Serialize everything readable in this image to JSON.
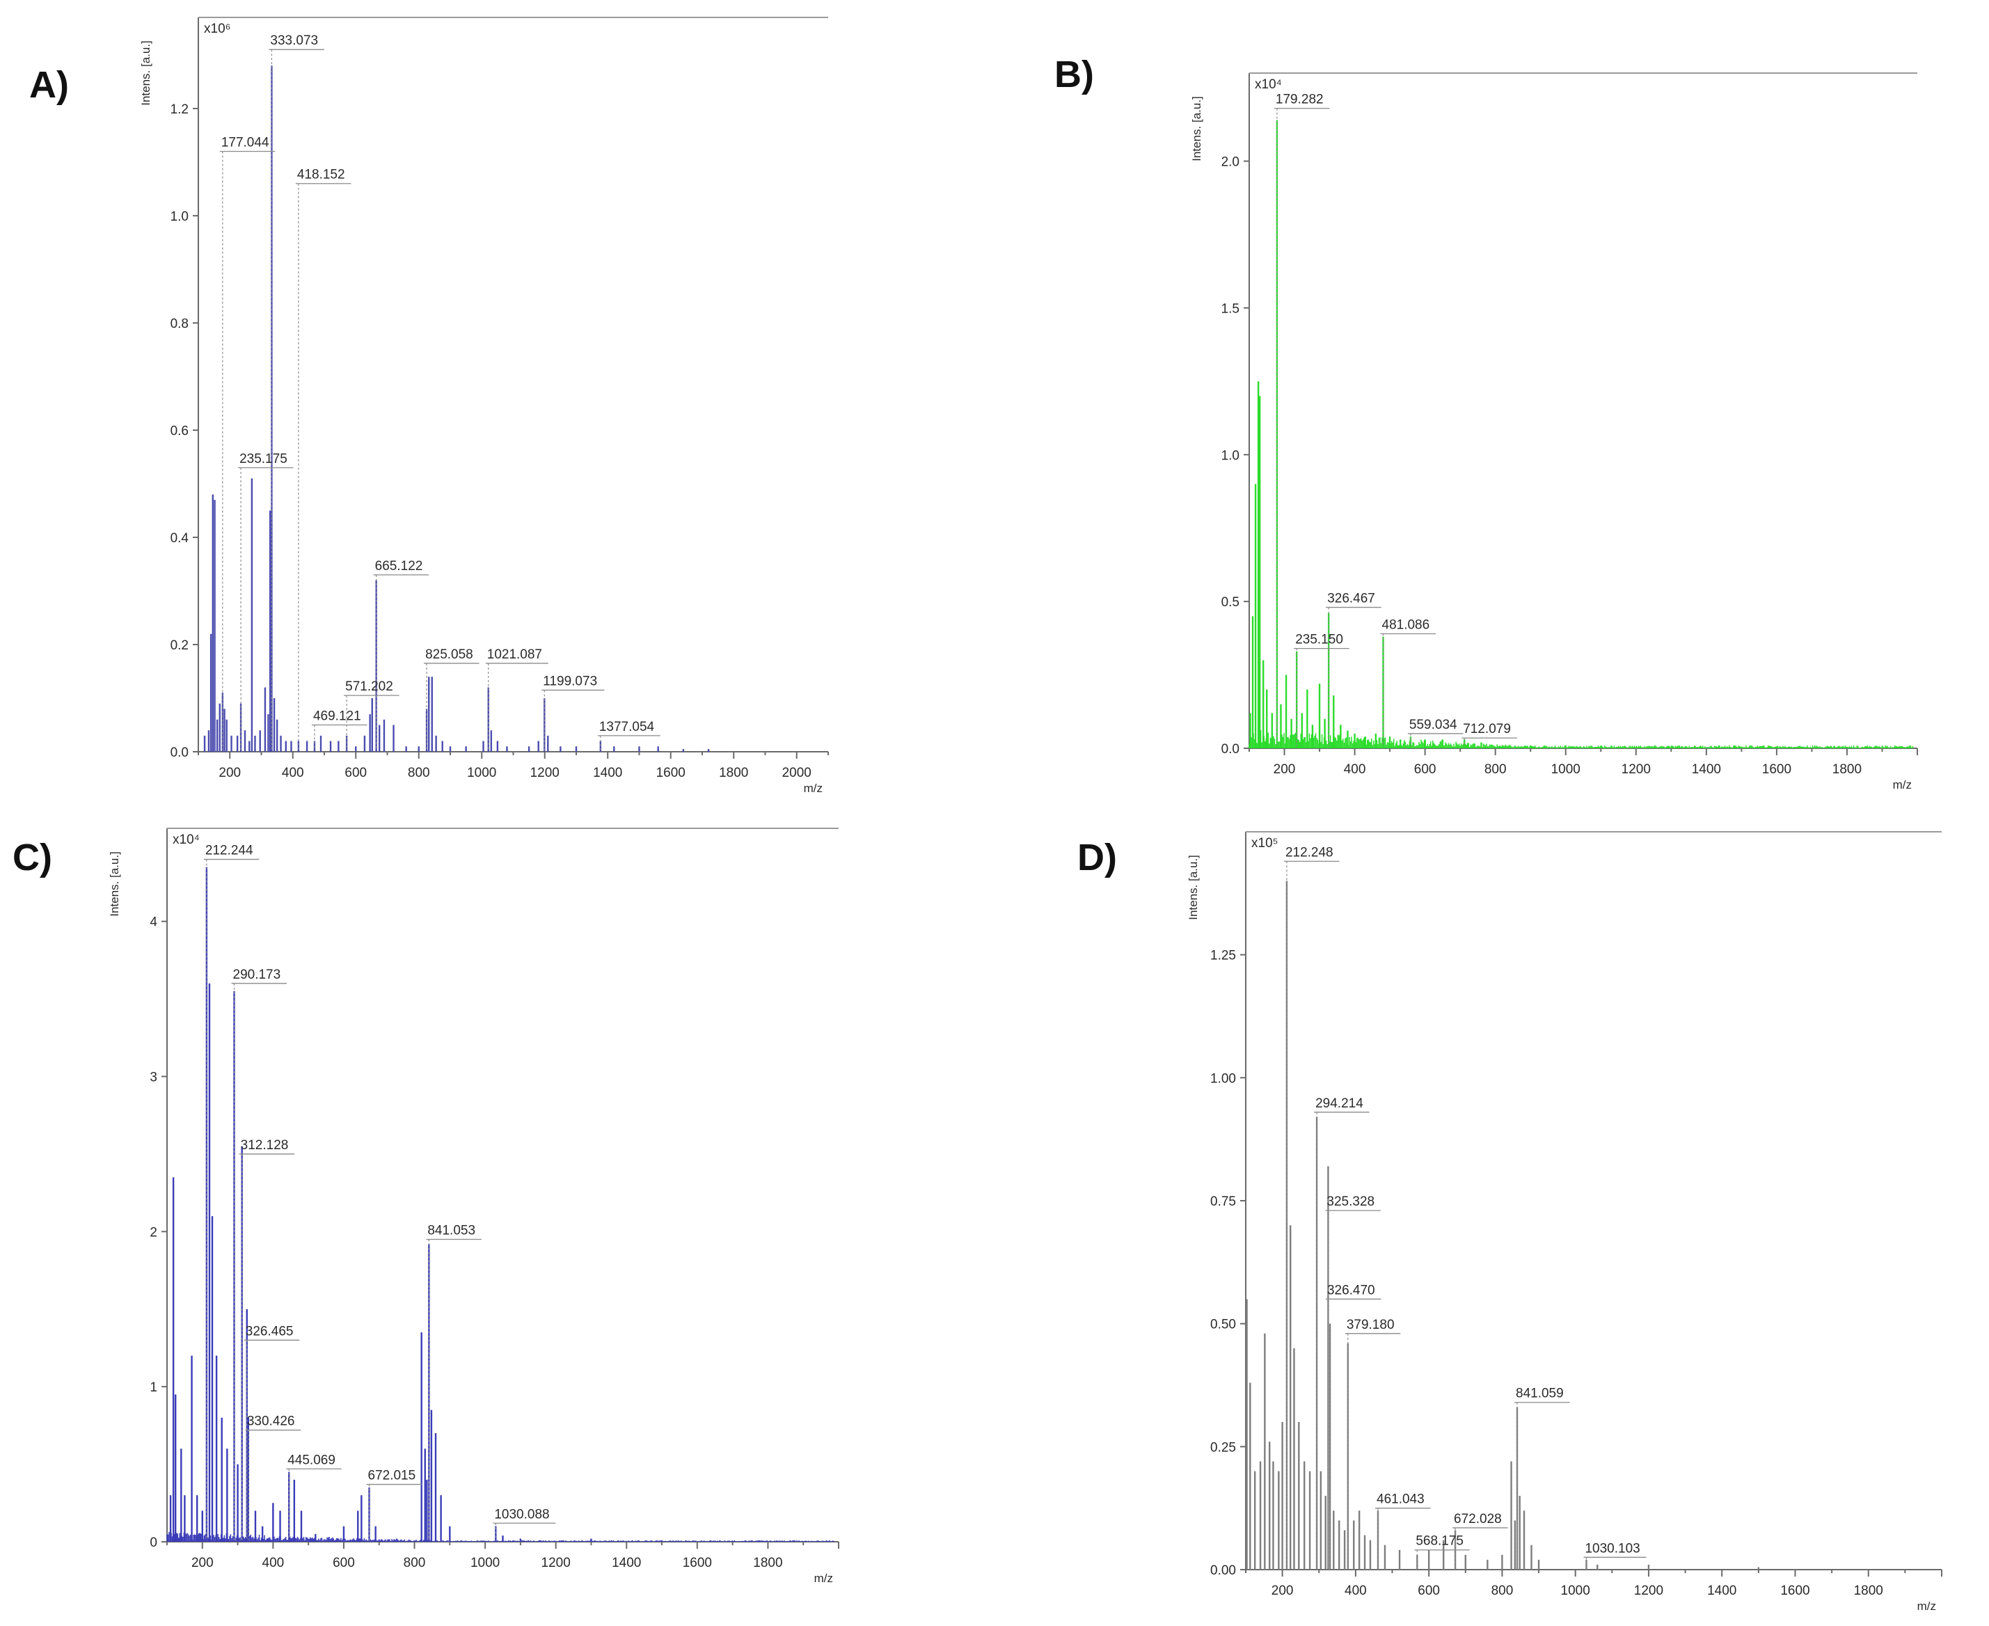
{
  "colors": {
    "A": "#4a4cae",
    "B": "#2bdc2b",
    "C": "#3a3cb8",
    "D": "#7d7d7d",
    "axis": "#6a6a6a",
    "text": "#2a2a2a"
  },
  "chart_data": [
    {
      "panel": "A)",
      "type": "bar",
      "color": "#4a4cae",
      "ylabel": "Intens. [a.u.]",
      "scale": "x10⁶",
      "xlabel": "m/z",
      "xlim": [
        100,
        2100
      ],
      "ylim": [
        0,
        1.37
      ],
      "xticks": [
        200,
        400,
        600,
        800,
        1000,
        1200,
        1400,
        1600,
        1800,
        2000
      ],
      "yticks": [
        0.0,
        0.2,
        0.4,
        0.6,
        0.8,
        1.0,
        1.2
      ],
      "ytick_labels": [
        "0.0",
        "0.2",
        "0.4",
        "0.6",
        "0.8",
        "1.0",
        "1.2"
      ],
      "peaks": [
        [
          120,
          0.03
        ],
        [
          133,
          0.04
        ],
        [
          140,
          0.22
        ],
        [
          146,
          0.48
        ],
        [
          152,
          0.47
        ],
        [
          160,
          0.06
        ],
        [
          168,
          0.09
        ],
        [
          177,
          0.11
        ],
        [
          183,
          0.08
        ],
        [
          190,
          0.06
        ],
        [
          205,
          0.03
        ],
        [
          224,
          0.03
        ],
        [
          235,
          0.09
        ],
        [
          248,
          0.04
        ],
        [
          262,
          0.02
        ],
        [
          270,
          0.51
        ],
        [
          280,
          0.03
        ],
        [
          296,
          0.04
        ],
        [
          312,
          0.12
        ],
        [
          322,
          0.07
        ],
        [
          328,
          0.45
        ],
        [
          333,
          1.28
        ],
        [
          341,
          0.1
        ],
        [
          350,
          0.06
        ],
        [
          362,
          0.03
        ],
        [
          378,
          0.02
        ],
        [
          395,
          0.02
        ],
        [
          418,
          0.02
        ],
        [
          445,
          0.02
        ],
        [
          469,
          0.02
        ],
        [
          489,
          0.03
        ],
        [
          520,
          0.02
        ],
        [
          545,
          0.02
        ],
        [
          571,
          0.03
        ],
        [
          600,
          0.01
        ],
        [
          628,
          0.03
        ],
        [
          645,
          0.07
        ],
        [
          652,
          0.1
        ],
        [
          665,
          0.32
        ],
        [
          675,
          0.05
        ],
        [
          690,
          0.06
        ],
        [
          720,
          0.05
        ],
        [
          760,
          0.01
        ],
        [
          800,
          0.01
        ],
        [
          825,
          0.08
        ],
        [
          832,
          0.14
        ],
        [
          842,
          0.14
        ],
        [
          855,
          0.03
        ],
        [
          875,
          0.02
        ],
        [
          900,
          0.01
        ],
        [
          950,
          0.01
        ],
        [
          1005,
          0.02
        ],
        [
          1021,
          0.12
        ],
        [
          1030,
          0.04
        ],
        [
          1050,
          0.02
        ],
        [
          1080,
          0.01
        ],
        [
          1150,
          0.01
        ],
        [
          1180,
          0.02
        ],
        [
          1199,
          0.1
        ],
        [
          1210,
          0.03
        ],
        [
          1250,
          0.01
        ],
        [
          1300,
          0.01
        ],
        [
          1377,
          0.02
        ],
        [
          1420,
          0.01
        ],
        [
          1500,
          0.01
        ],
        [
          1560,
          0.01
        ],
        [
          1640,
          0.005
        ],
        [
          1720,
          0.005
        ]
      ],
      "labels": [
        {
          "text": "333.073",
          "mz": 333,
          "val": 1.31
        },
        {
          "text": "177.044",
          "mz": 177,
          "val": 1.12
        },
        {
          "text": "418.152",
          "mz": 418,
          "val": 1.06
        },
        {
          "text": "235.175",
          "mz": 235,
          "val": 0.53
        },
        {
          "text": "665.122",
          "mz": 665,
          "val": 0.33
        },
        {
          "text": "825.058",
          "mz": 825,
          "val": 0.165
        },
        {
          "text": "1021.087",
          "mz": 1021,
          "val": 0.165
        },
        {
          "text": "571.202",
          "mz": 571,
          "val": 0.105
        },
        {
          "text": "1199.073",
          "mz": 1199,
          "val": 0.115
        },
        {
          "text": "469.121",
          "mz": 469,
          "val": 0.05
        },
        {
          "text": "1377.054",
          "mz": 1377,
          "val": 0.03
        }
      ]
    },
    {
      "panel": "B)",
      "type": "bar",
      "color": "#2bdc2b",
      "ylabel": "Intens. [a.u.]",
      "scale": "x10⁴",
      "xlabel": "m/z",
      "xlim": [
        100,
        2000
      ],
      "ylim": [
        0,
        2.3
      ],
      "xticks": [
        200,
        400,
        600,
        800,
        1000,
        1200,
        1400,
        1600,
        1800
      ],
      "yticks": [
        0.0,
        0.5,
        1.0,
        1.5,
        2.0
      ],
      "ytick_labels": [
        "0.0",
        "0.5",
        "1.0",
        "1.5",
        "2.0"
      ],
      "peaks": [
        [
          103,
          0.12
        ],
        [
          110,
          0.45
        ],
        [
          118,
          0.9
        ],
        [
          126,
          1.25
        ],
        [
          130,
          1.2
        ],
        [
          140,
          0.3
        ],
        [
          150,
          0.2
        ],
        [
          165,
          0.12
        ],
        [
          179,
          2.14
        ],
        [
          190,
          0.15
        ],
        [
          205,
          0.25
        ],
        [
          220,
          0.1
        ],
        [
          235,
          0.33
        ],
        [
          250,
          0.12
        ],
        [
          265,
          0.2
        ],
        [
          280,
          0.08
        ],
        [
          300,
          0.22
        ],
        [
          315,
          0.1
        ],
        [
          326,
          0.46
        ],
        [
          340,
          0.18
        ],
        [
          360,
          0.08
        ],
        [
          380,
          0.06
        ],
        [
          400,
          0.05
        ],
        [
          430,
          0.04
        ],
        [
          460,
          0.05
        ],
        [
          481,
          0.38
        ],
        [
          500,
          0.04
        ],
        [
          530,
          0.03
        ],
        [
          559,
          0.04
        ],
        [
          600,
          0.03
        ],
        [
          650,
          0.03
        ],
        [
          712,
          0.03
        ],
        [
          760,
          0.02
        ],
        [
          820,
          0.01
        ],
        [
          900,
          0.01
        ],
        [
          1000,
          0.01
        ],
        [
          1200,
          0.005
        ],
        [
          1500,
          0.005
        ],
        [
          1800,
          0.005
        ]
      ],
      "noise": {
        "from": 100,
        "to": 1990,
        "level": 0.05
      },
      "labels": [
        {
          "text": "179.282",
          "mz": 179,
          "val": 2.18
        },
        {
          "text": "326.467",
          "mz": 326,
          "val": 0.48
        },
        {
          "text": "481.086",
          "mz": 481,
          "val": 0.39
        },
        {
          "text": "235.150",
          "mz": 235,
          "val": 0.34
        },
        {
          "text": "559.034",
          "mz": 559,
          "val": 0.05
        },
        {
          "text": "712.079",
          "mz": 712,
          "val": 0.035
        }
      ]
    },
    {
      "panel": "C)",
      "type": "bar",
      "color": "#3a3cb8",
      "ylabel": "Intens. [a.u.]",
      "scale": "x10⁴",
      "xlabel": "m/z",
      "xlim": [
        100,
        2000
      ],
      "ylim": [
        0,
        4.6
      ],
      "xticks": [
        200,
        400,
        600,
        800,
        1000,
        1200,
        1400,
        1600,
        1800
      ],
      "yticks": [
        0,
        1,
        2,
        3,
        4
      ],
      "ytick_labels": [
        "0",
        "1",
        "2",
        "3",
        "4"
      ],
      "peaks": [
        [
          110,
          0.3
        ],
        [
          118,
          2.35
        ],
        [
          124,
          0.95
        ],
        [
          140,
          0.6
        ],
        [
          150,
          0.3
        ],
        [
          170,
          1.2
        ],
        [
          185,
          0.3
        ],
        [
          200,
          0.2
        ],
        [
          212,
          4.35
        ],
        [
          220,
          3.6
        ],
        [
          228,
          2.1
        ],
        [
          240,
          1.2
        ],
        [
          255,
          0.8
        ],
        [
          270,
          0.6
        ],
        [
          290,
          3.55
        ],
        [
          300,
          0.5
        ],
        [
          312,
          2.55
        ],
        [
          326,
          1.5
        ],
        [
          330,
          0.8
        ],
        [
          350,
          0.2
        ],
        [
          370,
          0.1
        ],
        [
          400,
          0.25
        ],
        [
          420,
          0.2
        ],
        [
          445,
          0.45
        ],
        [
          460,
          0.4
        ],
        [
          480,
          0.2
        ],
        [
          520,
          0.05
        ],
        [
          600,
          0.1
        ],
        [
          640,
          0.2
        ],
        [
          650,
          0.3
        ],
        [
          672,
          0.35
        ],
        [
          690,
          0.1
        ],
        [
          750,
          0.02
        ],
        [
          820,
          1.35
        ],
        [
          830,
          0.6
        ],
        [
          835,
          0.4
        ],
        [
          841,
          1.92
        ],
        [
          848,
          0.85
        ],
        [
          860,
          0.7
        ],
        [
          875,
          0.3
        ],
        [
          900,
          0.1
        ],
        [
          1030,
          0.1
        ],
        [
          1050,
          0.04
        ],
        [
          1100,
          0.02
        ],
        [
          1300,
          0.02
        ],
        [
          1500,
          0.01
        ]
      ],
      "noise": {
        "from": 100,
        "to": 1990,
        "level": 0.05
      },
      "labels": [
        {
          "text": "212.244",
          "mz": 212,
          "val": 4.4
        },
        {
          "text": "290.173",
          "mz": 290,
          "val": 3.6
        },
        {
          "text": "312.128",
          "mz": 312,
          "val": 2.5
        },
        {
          "text": "841.053",
          "mz": 841,
          "val": 1.95
        },
        {
          "text": "326.465",
          "mz": 326,
          "val": 1.3
        },
        {
          "text": "330.426",
          "mz": 330,
          "val": 0.72
        },
        {
          "text": "445.069",
          "mz": 445,
          "val": 0.47
        },
        {
          "text": "672.015",
          "mz": 672,
          "val": 0.37
        },
        {
          "text": "1030.088",
          "mz": 1030,
          "val": 0.12
        }
      ]
    },
    {
      "panel": "D)",
      "type": "bar",
      "color": "#7d7d7d",
      "ylabel": "Intens. [a.u.]",
      "scale": "x10⁵",
      "xlabel": "m/z",
      "xlim": [
        100,
        2000
      ],
      "ylim": [
        0,
        1.5
      ],
      "xticks": [
        200,
        400,
        600,
        800,
        1000,
        1200,
        1400,
        1600,
        1800
      ],
      "yticks": [
        0.0,
        0.25,
        0.5,
        0.75,
        1.0,
        1.25
      ],
      "ytick_labels": [
        "0.00",
        "0.25",
        "0.50",
        "0.75",
        "1.00",
        "1.25"
      ],
      "peaks": [
        [
          103,
          0.55
        ],
        [
          112,
          0.38
        ],
        [
          125,
          0.2
        ],
        [
          140,
          0.22
        ],
        [
          152,
          0.48
        ],
        [
          165,
          0.26
        ],
        [
          175,
          0.22
        ],
        [
          190,
          0.2
        ],
        [
          200,
          0.3
        ],
        [
          212,
          1.4
        ],
        [
          222,
          0.7
        ],
        [
          232,
          0.45
        ],
        [
          245,
          0.3
        ],
        [
          260,
          0.22
        ],
        [
          275,
          0.2
        ],
        [
          294,
          0.92
        ],
        [
          305,
          0.2
        ],
        [
          318,
          0.15
        ],
        [
          325,
          0.82
        ],
        [
          330,
          0.5
        ],
        [
          340,
          0.12
        ],
        [
          355,
          0.1
        ],
        [
          370,
          0.08
        ],
        [
          379,
          0.46
        ],
        [
          395,
          0.1
        ],
        [
          410,
          0.12
        ],
        [
          425,
          0.07
        ],
        [
          440,
          0.06
        ],
        [
          461,
          0.12
        ],
        [
          480,
          0.05
        ],
        [
          520,
          0.04
        ],
        [
          568,
          0.03
        ],
        [
          600,
          0.04
        ],
        [
          640,
          0.06
        ],
        [
          672,
          0.08
        ],
        [
          700,
          0.03
        ],
        [
          760,
          0.02
        ],
        [
          800,
          0.03
        ],
        [
          825,
          0.22
        ],
        [
          835,
          0.1
        ],
        [
          841,
          0.33
        ],
        [
          848,
          0.15
        ],
        [
          860,
          0.12
        ],
        [
          880,
          0.05
        ],
        [
          900,
          0.02
        ],
        [
          1030,
          0.02
        ],
        [
          1060,
          0.01
        ],
        [
          1200,
          0.01
        ],
        [
          1500,
          0.005
        ]
      ],
      "labels": [
        {
          "text": "212.248",
          "mz": 212,
          "val": 1.44
        },
        {
          "text": "294.214",
          "mz": 294,
          "val": 0.93
        },
        {
          "text": "325.328",
          "mz": 325,
          "val": 0.73
        },
        {
          "text": "326.470",
          "mz": 326,
          "val": 0.55
        },
        {
          "text": "379.180",
          "mz": 379,
          "val": 0.48
        },
        {
          "text": "841.059",
          "mz": 841,
          "val": 0.34
        },
        {
          "text": "461.043",
          "mz": 461,
          "val": 0.125
        },
        {
          "text": "672.028",
          "mz": 672,
          "val": 0.085
        },
        {
          "text": "568.175",
          "mz": 568,
          "val": 0.04
        },
        {
          "text": "1030.103",
          "mz": 1030,
          "val": 0.025
        }
      ]
    }
  ]
}
